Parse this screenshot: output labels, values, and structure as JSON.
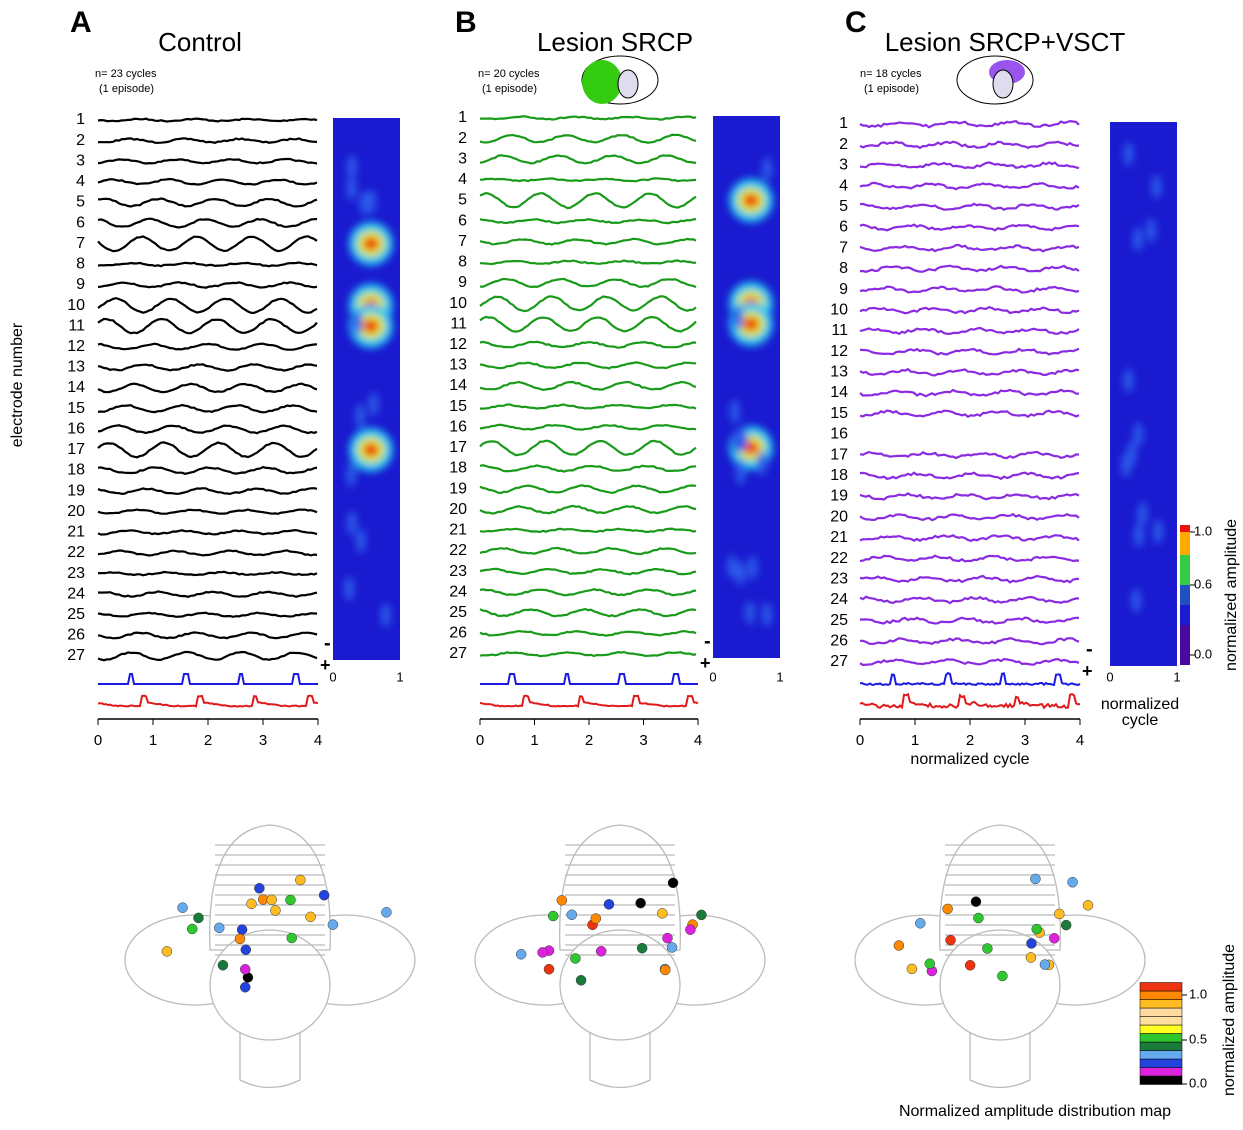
{
  "panels": [
    {
      "letter": "A",
      "title": "Control",
      "note": [
        "n= 23 cycles",
        "(1 episode)"
      ],
      "electrodes": [
        "1",
        "2",
        "3",
        "4",
        "5",
        "6",
        "7",
        "8",
        "9",
        "10",
        "11",
        "12",
        "13",
        "14",
        "15",
        "16",
        "17",
        "18",
        "19",
        "20",
        "21",
        "22",
        "23",
        "24",
        "25",
        "26",
        "27"
      ],
      "xticks": [
        "0",
        "1",
        "2",
        "3",
        "4"
      ],
      "heatmap_ticks": [
        "0",
        "1"
      ]
    },
    {
      "letter": "B",
      "title": "Lesion SRCP",
      "note": [
        "n= 20 cycles",
        "(1 episode)"
      ],
      "electrodes": [
        "1",
        "2",
        "3",
        "4",
        "5",
        "6",
        "7",
        "8",
        "9",
        "10",
        "11",
        "12",
        "13",
        "14",
        "15",
        "16",
        "17",
        "18",
        "19",
        "20",
        "21",
        "22",
        "23",
        "24",
        "25",
        "26",
        "27"
      ],
      "xticks": [
        "0",
        "1",
        "2",
        "3",
        "4"
      ],
      "heatmap_ticks": [
        "0",
        "1"
      ]
    },
    {
      "letter": "C",
      "title": "Lesion SRCP+VSCT",
      "note": [
        "n= 18 cycles",
        "(1 episode)"
      ],
      "electrodes": [
        "1",
        "2",
        "3",
        "4",
        "5",
        "6",
        "7",
        "8",
        "9",
        "10",
        "11",
        "12",
        "13",
        "14",
        "15",
        "16",
        "17",
        "18",
        "19",
        "20",
        "21",
        "22",
        "23",
        "24",
        "25",
        "26",
        "27"
      ],
      "xticks": [
        "0",
        "1",
        "2",
        "3",
        "4"
      ],
      "heatmap_ticks": [
        "0",
        "1"
      ]
    }
  ],
  "polarity": [
    "-",
    "+"
  ],
  "y_axis_label": "electrode number",
  "x_axis_label": "normalized cycle",
  "heatmap_x_label": [
    "normalized",
    "cycle"
  ],
  "colorbar_top": {
    "label": "normalized amplitude",
    "ticks": [
      "0.0",
      "0.6",
      "1.0"
    ]
  },
  "colorbar_bottom": {
    "label": "normalized amplitude",
    "ticks": [
      "0.0",
      "0.5",
      "1.0"
    ]
  },
  "map_caption": "Normalized amplitude distribution map"
}
